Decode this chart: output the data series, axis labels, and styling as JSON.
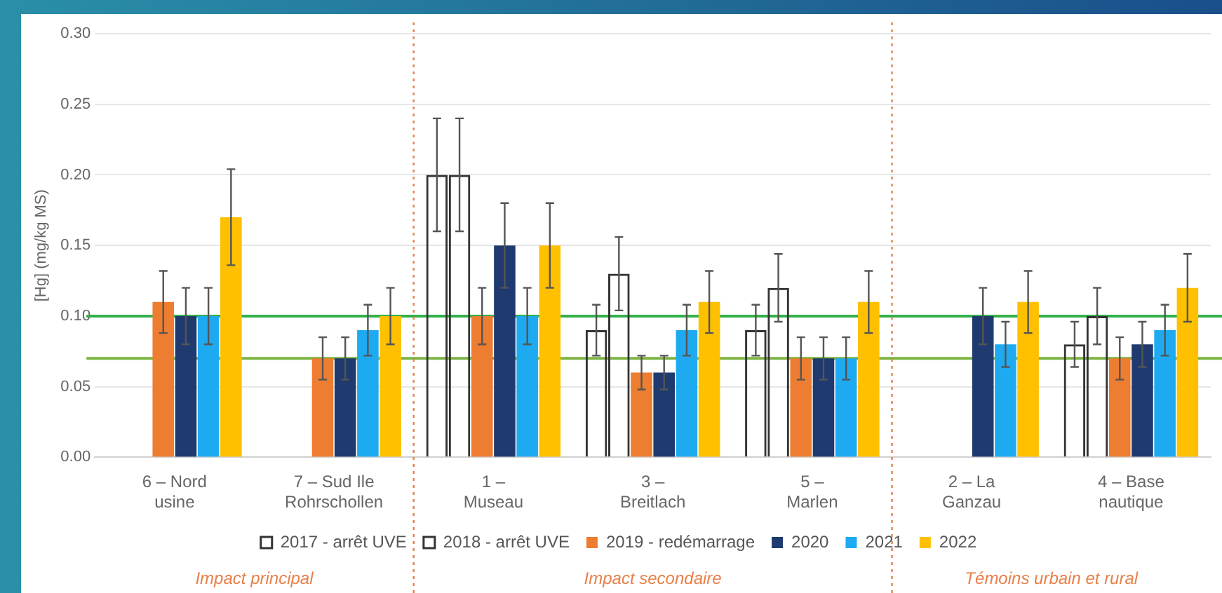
{
  "chart_data": {
    "type": "bar",
    "ylabel": "[Hg] (mg/kg MS)",
    "categories": [
      "6 – Nord usine",
      "7 – Sud Ile Rohrschollen",
      "1 – Museau",
      "3 – Breitlach",
      "5 – Marlen",
      "2 – La Ganzau",
      "4 – Base nautique"
    ],
    "series": [
      {
        "name": "2017 - arrêt UVE",
        "color": "#333333",
        "values": [
          null,
          null,
          0.2,
          0.09,
          0.09,
          null,
          0.08
        ],
        "errors": [
          null,
          null,
          0.04,
          0.018,
          0.018,
          null,
          0.016
        ]
      },
      {
        "name": "2018 - arrêt UVE",
        "color": "#333333",
        "values": [
          null,
          null,
          0.2,
          0.13,
          0.12,
          null,
          0.1
        ],
        "errors": [
          null,
          null,
          0.04,
          0.026,
          0.024,
          null,
          0.02
        ]
      },
      {
        "name": "2019 - redémarrage",
        "color": "#ed7d31",
        "values": [
          0.11,
          0.07,
          0.1,
          0.06,
          0.07,
          null,
          0.07
        ],
        "errors": [
          0.022,
          0.015,
          0.02,
          0.012,
          0.015,
          null,
          0.015
        ]
      },
      {
        "name": "2020",
        "color": "#1f3a6e",
        "values": [
          0.1,
          0.07,
          0.15,
          0.06,
          0.07,
          0.1,
          0.08
        ],
        "errors": [
          0.02,
          0.015,
          0.03,
          0.012,
          0.015,
          0.02,
          0.016
        ]
      },
      {
        "name": "2021",
        "color": "#1eaaf1",
        "values": [
          0.1,
          0.09,
          0.1,
          0.09,
          0.07,
          0.08,
          0.09
        ],
        "errors": [
          0.02,
          0.018,
          0.02,
          0.018,
          0.015,
          0.016,
          0.018
        ]
      },
      {
        "name": "2022",
        "color": "#ffc000",
        "values": [
          0.17,
          0.1,
          0.15,
          0.11,
          0.11,
          0.11,
          0.12
        ],
        "errors": [
          0.034,
          0.02,
          0.03,
          0.022,
          0.022,
          0.022,
          0.024
        ]
      }
    ],
    "ylim": [
      0,
      0.3
    ],
    "yticks": [
      {
        "value": 0,
        "label": "0.00"
      },
      {
        "value": 0.05,
        "label": "0.05"
      },
      {
        "value": 0.1,
        "label": "0.10"
      },
      {
        "value": 0.15,
        "label": "0.15"
      },
      {
        "value": 0.2,
        "label": "0.20"
      },
      {
        "value": 0.25,
        "label": "0.25"
      },
      {
        "value": 0.3,
        "label": "0.30"
      }
    ],
    "grid": "y",
    "legend": "bottom",
    "ref_lines": [
      {
        "axis": "y",
        "value": 0.1,
        "color": "#33b04a"
      },
      {
        "axis": "y",
        "value": 0.07,
        "color": "#7cb342"
      }
    ],
    "annotations": [
      "Impact principal",
      "Impact secondaire",
      "Témoins urbain et rural"
    ]
  }
}
